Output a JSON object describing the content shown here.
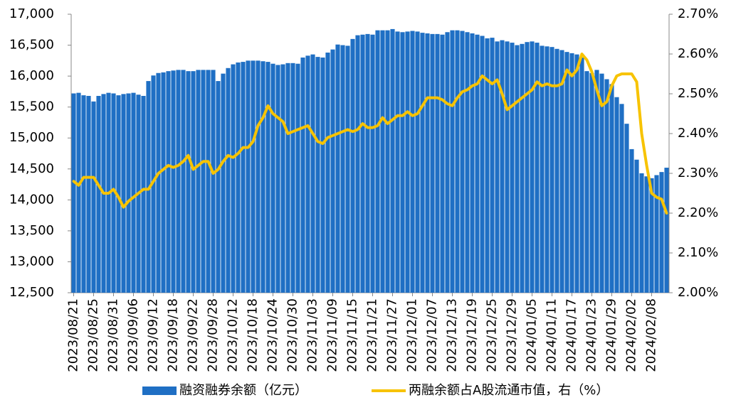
{
  "chart_data": {
    "type": "bar",
    "categories": [
      "2023/08/21",
      null,
      null,
      null,
      "2023/08/25",
      null,
      null,
      null,
      "2023/08/31",
      null,
      null,
      null,
      "2023/09/06",
      null,
      null,
      null,
      "2023/09/12",
      null,
      null,
      null,
      "2023/09/18",
      null,
      null,
      null,
      "2023/09/22",
      null,
      null,
      null,
      "2023/09/28",
      null,
      null,
      null,
      "2023/10/12",
      null,
      null,
      null,
      "2023/10/18",
      null,
      null,
      null,
      "2023/10/24",
      null,
      null,
      null,
      "2023/10/30",
      null,
      null,
      null,
      "2023/11/03",
      null,
      null,
      null,
      "2023/11/09",
      null,
      null,
      null,
      "2023/11/15",
      null,
      null,
      null,
      "2023/11/21",
      null,
      null,
      null,
      "2023/11/27",
      null,
      null,
      null,
      "2023/12/01",
      null,
      null,
      null,
      "2023/12/07",
      null,
      null,
      null,
      "2023/12/13",
      null,
      null,
      null,
      "2023/12/19",
      null,
      null,
      null,
      "2023/12/25",
      null,
      null,
      null,
      "2023/12/29",
      null,
      null,
      null,
      "2024/01/05",
      null,
      null,
      null,
      "2024/01/11",
      null,
      null,
      null,
      "2024/01/17",
      null,
      null,
      null,
      "2024/01/23",
      null,
      null,
      null,
      "2024/01/29",
      null,
      null,
      null,
      "2024/02/02",
      null,
      null,
      null,
      "2024/02/08",
      null,
      null,
      null
    ],
    "series": [
      {
        "name": "融资融券余额（亿元）",
        "color": "#1f6fc4",
        "type": "bar",
        "values": [
          15720,
          15730,
          15690,
          15680,
          15590,
          15680,
          15710,
          15730,
          15720,
          15690,
          15710,
          15720,
          15730,
          15700,
          15680,
          15920,
          16010,
          16050,
          16060,
          16080,
          16090,
          16100,
          16100,
          16080,
          16080,
          16100,
          16100,
          16100,
          16100,
          15920,
          16040,
          16130,
          16190,
          16220,
          16230,
          16250,
          16250,
          16250,
          16240,
          16230,
          16200,
          16180,
          16190,
          16210,
          16210,
          16200,
          16300,
          16330,
          16350,
          16310,
          16300,
          16380,
          16430,
          16510,
          16500,
          16490,
          16600,
          16660,
          16670,
          16680,
          16670,
          16740,
          16740,
          16740,
          16760,
          16720,
          16710,
          16720,
          16730,
          16720,
          16700,
          16690,
          16680,
          16680,
          16670,
          16710,
          16740,
          16740,
          16730,
          16710,
          16690,
          16670,
          16650,
          16610,
          16620,
          16560,
          16580,
          16560,
          16540,
          16500,
          16520,
          16550,
          16560,
          16540,
          16490,
          16480,
          16470,
          16440,
          16420,
          16390,
          16370,
          16350,
          16300,
          16080,
          16050,
          16100,
          16040,
          15950,
          15870,
          15660,
          15550,
          15230,
          14820,
          14650,
          14430,
          14380,
          14350,
          14400,
          14450,
          14520
        ]
      },
      {
        "name": "两融余额占A股流通市值，右（%）",
        "color": "#f7c300",
        "type": "line",
        "axis": "y2",
        "values": [
          2.28,
          2.27,
          2.29,
          2.29,
          2.29,
          2.27,
          2.25,
          2.25,
          2.26,
          2.24,
          2.215,
          2.23,
          2.24,
          2.25,
          2.26,
          2.26,
          2.28,
          2.3,
          2.31,
          2.32,
          2.315,
          2.32,
          2.33,
          2.345,
          2.31,
          2.32,
          2.33,
          2.33,
          2.3,
          2.31,
          2.33,
          2.345,
          2.34,
          2.35,
          2.365,
          2.365,
          2.38,
          2.42,
          2.44,
          2.47,
          2.45,
          2.44,
          2.43,
          2.4,
          2.405,
          2.41,
          2.415,
          2.42,
          2.4,
          2.38,
          2.375,
          2.39,
          2.395,
          2.4,
          2.405,
          2.41,
          2.405,
          2.41,
          2.425,
          2.415,
          2.415,
          2.42,
          2.44,
          2.425,
          2.435,
          2.445,
          2.445,
          2.455,
          2.445,
          2.45,
          2.47,
          2.49,
          2.49,
          2.49,
          2.485,
          2.475,
          2.47,
          2.49,
          2.505,
          2.51,
          2.52,
          2.525,
          2.545,
          2.535,
          2.525,
          2.535,
          2.5,
          2.46,
          2.47,
          2.48,
          2.49,
          2.5,
          2.51,
          2.53,
          2.52,
          2.525,
          2.52,
          2.52,
          2.525,
          2.56,
          2.545,
          2.56,
          2.6,
          2.585,
          2.555,
          2.51,
          2.47,
          2.48,
          2.52,
          2.545,
          2.55,
          2.55,
          2.55,
          2.53,
          2.4,
          2.32,
          2.25,
          2.24,
          2.235,
          2.2
        ]
      }
    ],
    "ylim": [
      12500,
      17000
    ],
    "yticks": [
      {
        "value": 12500,
        "label": "12,500"
      },
      {
        "value": 13000,
        "label": "13,000"
      },
      {
        "value": 13500,
        "label": "13,500"
      },
      {
        "value": 14000,
        "label": "14,000"
      },
      {
        "value": 14500,
        "label": "14,500"
      },
      {
        "value": 15000,
        "label": "15,000"
      },
      {
        "value": 15500,
        "label": "15,500"
      },
      {
        "value": 16000,
        "label": "16,000"
      },
      {
        "value": 16500,
        "label": "16,500"
      },
      {
        "value": 17000,
        "label": "17,000"
      }
    ],
    "y2lim": [
      2.0,
      2.7
    ],
    "y2ticks": [
      {
        "value": 2.0,
        "label": "2.00%"
      },
      {
        "value": 2.1,
        "label": "2.10%"
      },
      {
        "value": 2.2,
        "label": "2.20%"
      },
      {
        "value": 2.3,
        "label": "2.30%"
      },
      {
        "value": 2.4,
        "label": "2.40%"
      },
      {
        "value": 2.5,
        "label": "2.50%"
      },
      {
        "value": 2.6,
        "label": "2.60%"
      },
      {
        "value": 2.7,
        "label": "2.70%"
      }
    ],
    "grid": false,
    "legend": "bottom"
  }
}
